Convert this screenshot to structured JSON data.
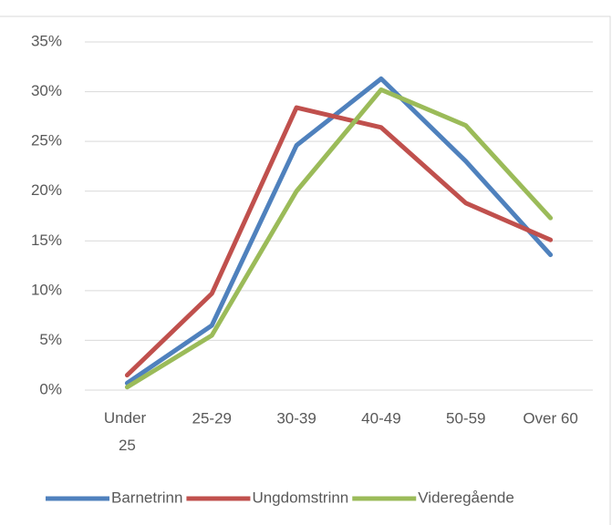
{
  "chart_data": {
    "type": "line",
    "categories": [
      "Under 25",
      "25-29",
      "30-39",
      "40-49",
      "50-59",
      "Over 60"
    ],
    "series": [
      {
        "name": "Barnetrinn",
        "color": "#4f81bd",
        "values": [
          0.7,
          6.5,
          24.6,
          31.3,
          23,
          13.6
        ]
      },
      {
        "name": "Ungdomstrinn",
        "color": "#c0504d",
        "values": [
          1.5,
          9.7,
          28.4,
          26.4,
          18.8,
          15.1
        ]
      },
      {
        "name": "Videregående",
        "color": "#9bbb59",
        "values": [
          0.3,
          5.5,
          20,
          30.2,
          26.6,
          17.3
        ]
      }
    ],
    "ylim": [
      0,
      35
    ],
    "yticks": [
      {
        "value": 0,
        "label": "0%"
      },
      {
        "value": 5,
        "label": "5%"
      },
      {
        "value": 10,
        "label": "10%"
      },
      {
        "value": 15,
        "label": "15%"
      },
      {
        "value": 20,
        "label": "20%"
      },
      {
        "value": 25,
        "label": "25%"
      },
      {
        "value": 30,
        "label": "30%"
      },
      {
        "value": 35,
        "label": "35%"
      }
    ],
    "grid": true,
    "legend": "bottom"
  }
}
